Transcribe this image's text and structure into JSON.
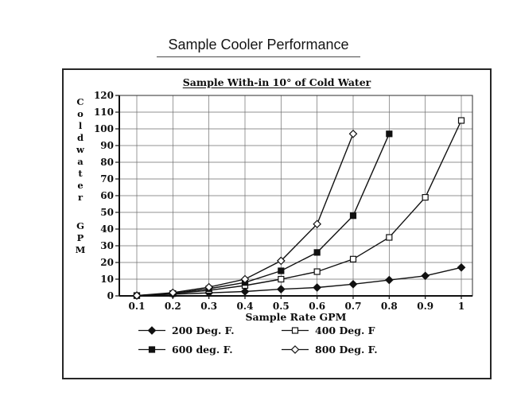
{
  "page": {
    "title": "Sample Cooler Performance"
  },
  "chart_data": {
    "type": "line",
    "title": "Sample With-in 10° of Cold Water",
    "xlabel": "Sample Rate GPM",
    "ylabel": "Coldwater",
    "ylabel_unit": "GPM",
    "xlim": [
      0.1,
      1
    ],
    "ylim": [
      0,
      120
    ],
    "x_ticks": [
      "0.1",
      "0.2",
      "0.3",
      "0.4",
      "0.5",
      "0.6",
      "0.7",
      "0.8",
      "0.9",
      "1"
    ],
    "y_ticks": [
      0,
      10,
      20,
      30,
      40,
      50,
      60,
      70,
      80,
      90,
      100,
      110,
      120
    ],
    "grid": true,
    "legend_position": "bottom",
    "line_color": "#111111",
    "series": [
      {
        "name": "200 Deg. F.",
        "marker": "filled-diamond",
        "x": [
          0.1,
          0.2,
          0.3,
          0.4,
          0.5,
          0.6,
          0.7,
          0.8,
          0.9,
          1.0
        ],
        "y": [
          0.2,
          1,
          1.8,
          2.6,
          4,
          5,
          7,
          9.5,
          12,
          17
        ]
      },
      {
        "name": "400 Deg. F",
        "marker": "open-square",
        "x": [
          0.1,
          0.2,
          0.3,
          0.4,
          0.5,
          0.6,
          0.7,
          0.8,
          0.9,
          1.0
        ],
        "y": [
          0.2,
          1.4,
          3.3,
          6.2,
          10,
          14.5,
          22,
          35,
          59,
          105
        ]
      },
      {
        "name": "600 deg. F.",
        "marker": "filled-square",
        "x": [
          0.1,
          0.2,
          0.3,
          0.4,
          0.5,
          0.6,
          0.7,
          0.8
        ],
        "y": [
          0.2,
          1.4,
          4.3,
          8,
          15,
          26,
          48,
          97
        ]
      },
      {
        "name": "800 Deg. F.",
        "marker": "open-diamond",
        "x": [
          0.1,
          0.2,
          0.3,
          0.4,
          0.5,
          0.6,
          0.7
        ],
        "y": [
          0.2,
          1.9,
          5.2,
          10,
          21,
          43,
          97
        ]
      }
    ]
  }
}
